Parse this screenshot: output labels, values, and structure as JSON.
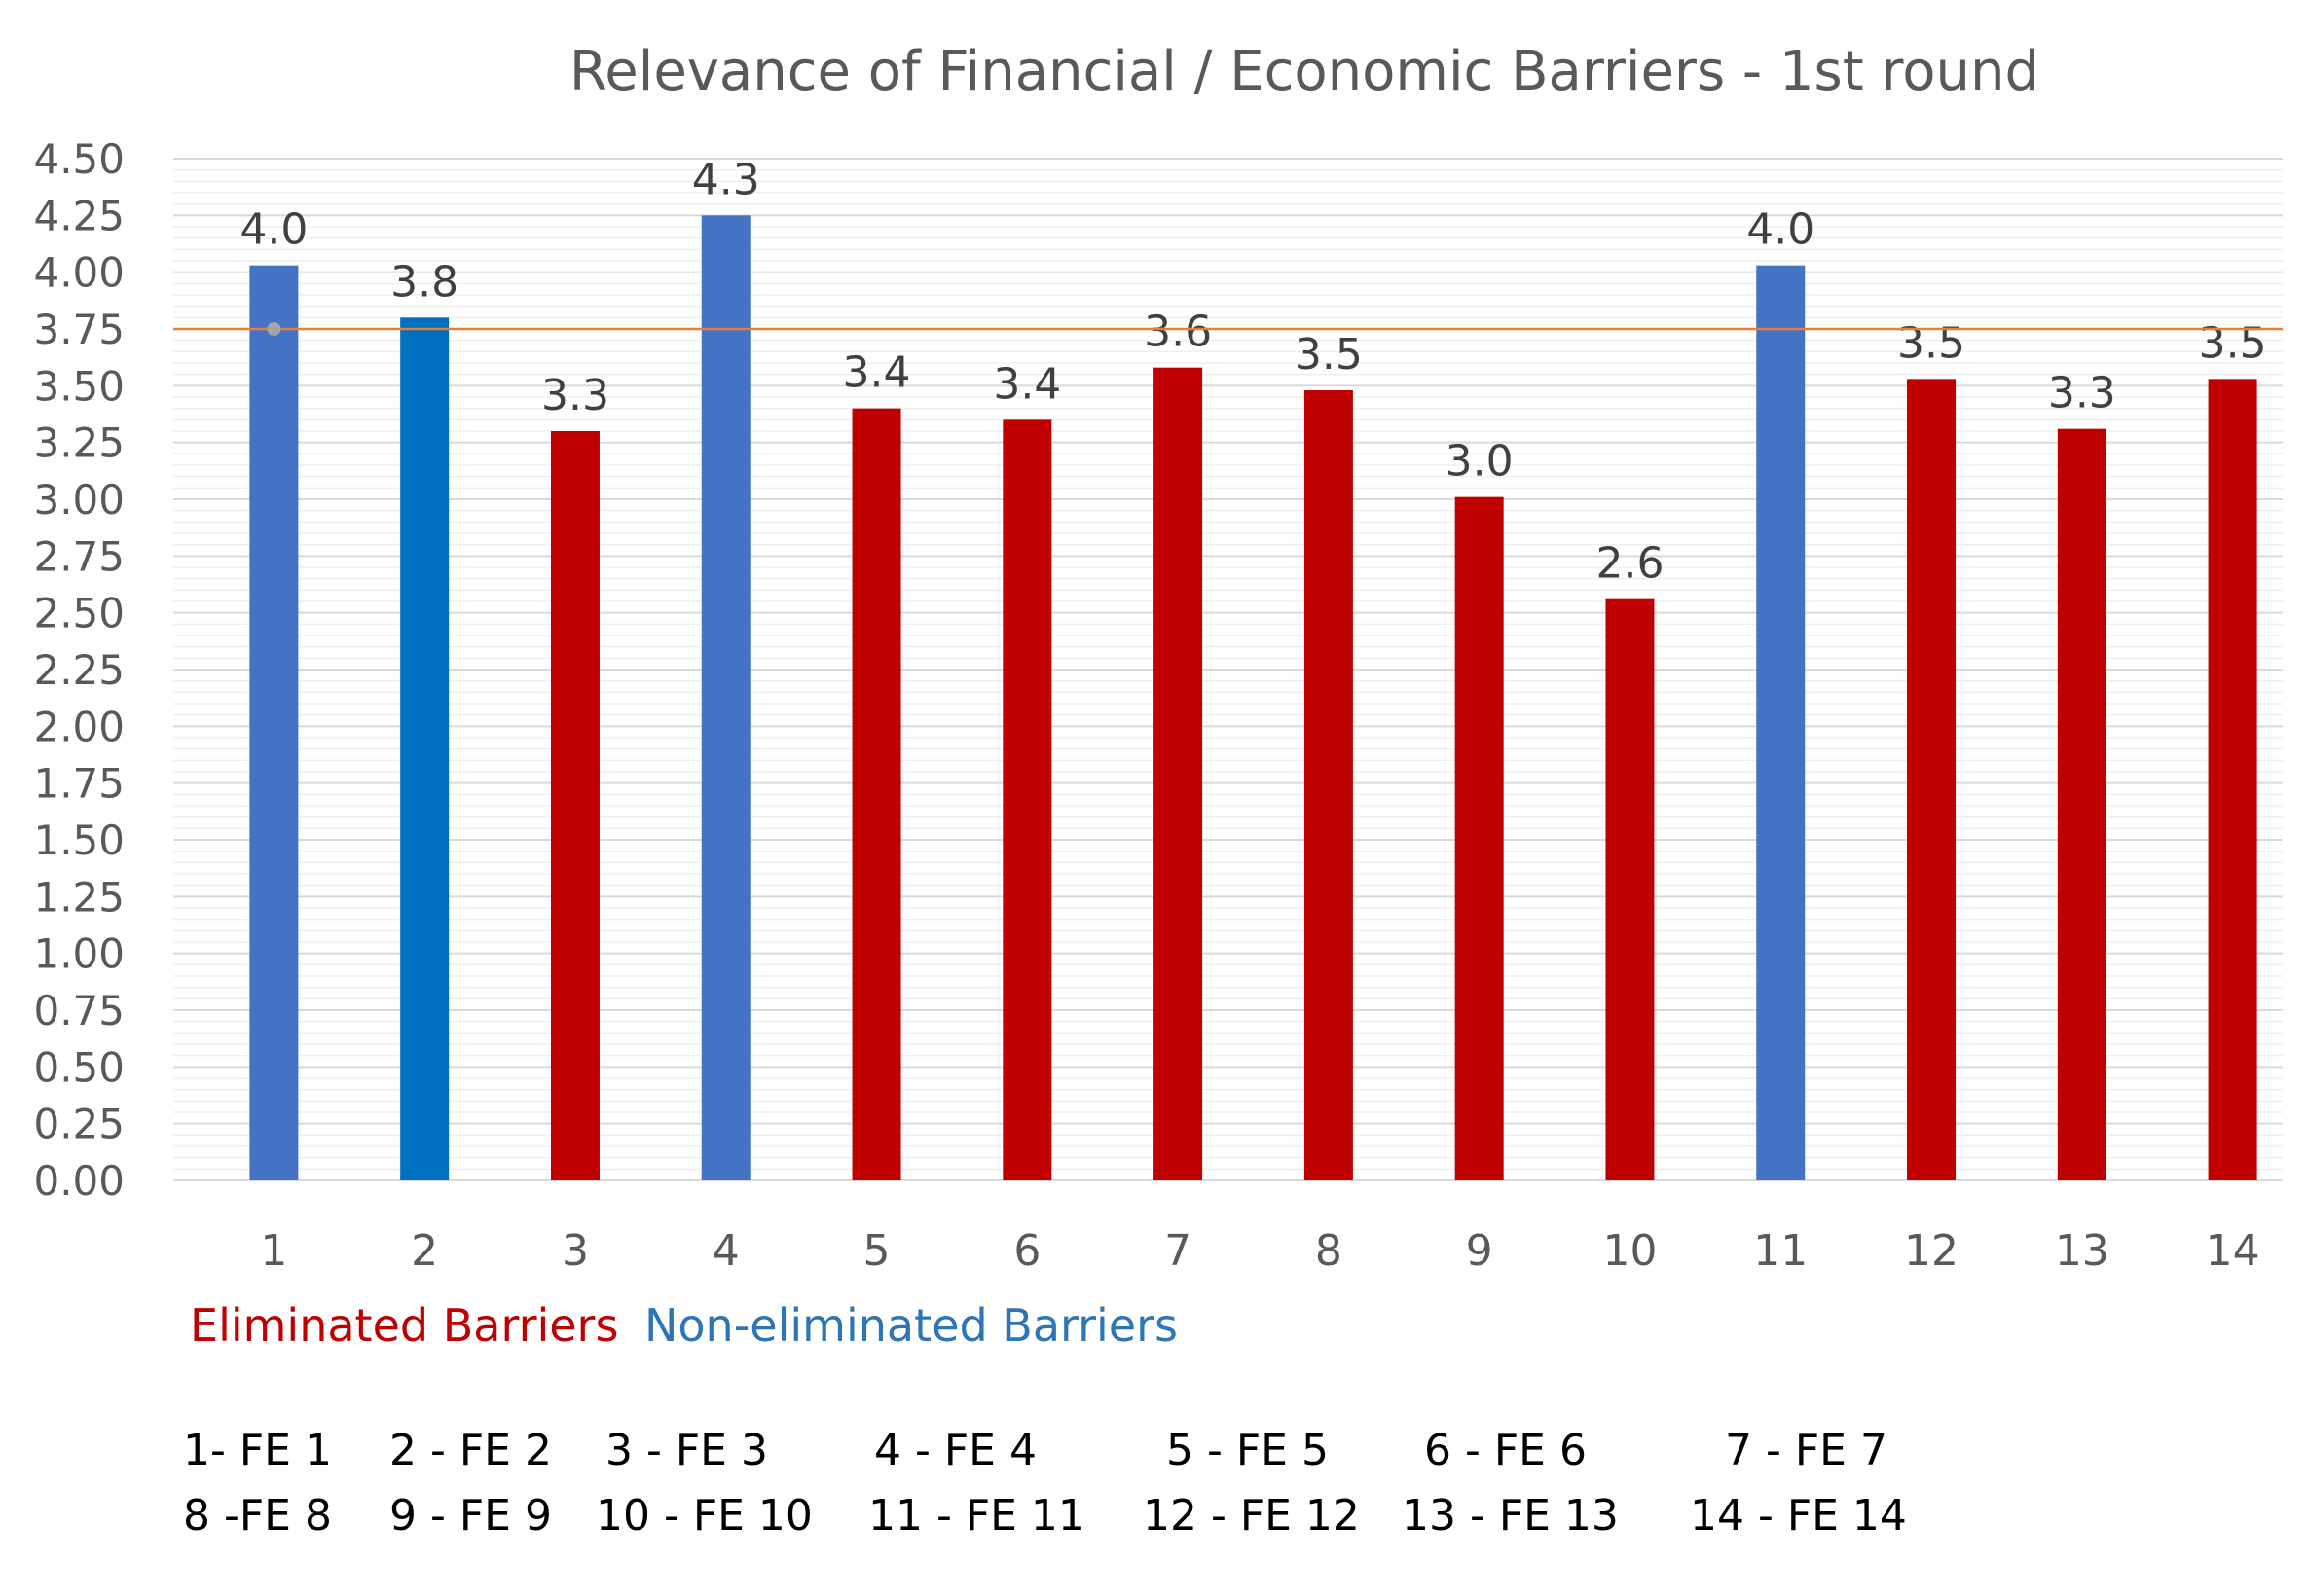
{
  "chart_data": {
    "type": "bar",
    "title": "Relevance of Financial / Economic Barriers - 1st round",
    "categories": [
      "1",
      "2",
      "3",
      "4",
      "5",
      "6",
      "7",
      "8",
      "9",
      "10",
      "11",
      "12",
      "13",
      "14"
    ],
    "values": [
      4.03,
      3.8,
      3.3,
      4.25,
      3.4,
      3.35,
      3.58,
      3.48,
      3.01,
      2.56,
      4.03,
      3.53,
      3.31,
      3.53
    ],
    "data_labels": [
      "4.0",
      "3.8",
      "3.3",
      "4.3",
      "3.4",
      "3.4",
      "3.6",
      "3.5",
      "3.0",
      "2.6",
      "4.0",
      "3.5",
      "3.3",
      "3.5"
    ],
    "status": [
      "non-eliminated",
      "non-eliminated",
      "eliminated",
      "non-eliminated",
      "eliminated",
      "eliminated",
      "eliminated",
      "eliminated",
      "eliminated",
      "eliminated",
      "non-eliminated",
      "eliminated",
      "eliminated",
      "eliminated"
    ],
    "bar_colors": [
      "#4472C4",
      "#0070C0",
      "#C00000",
      "#4472C4",
      "#C00000",
      "#C00000",
      "#C00000",
      "#C00000",
      "#C00000",
      "#C00000",
      "#4472C4",
      "#C00000",
      "#C00000",
      "#C00000"
    ],
    "ylim": [
      0,
      4.5
    ],
    "yticks": [
      "0.00",
      "0.25",
      "0.50",
      "0.75",
      "1.00",
      "1.25",
      "1.50",
      "1.75",
      "2.00",
      "2.25",
      "2.50",
      "2.75",
      "3.00",
      "3.25",
      "3.50",
      "3.75",
      "4.00",
      "4.25",
      "4.50"
    ],
    "threshold": 3.75,
    "threshold_color": "#ED7D31",
    "xlabel": "",
    "ylabel": "",
    "grid": true
  },
  "legend": {
    "eliminated": {
      "label": "Eliminated Barriers",
      "color": "#C00000"
    },
    "non_eliminated": {
      "label": "Non-eliminated Barriers",
      "color": "#2E75B6"
    }
  },
  "mapping": {
    "row1": [
      "1- FE 1",
      "2 - FE 2",
      "3 - FE 3",
      "4 - FE 4",
      "5 - FE 5",
      "6 - FE 6",
      "7 - FE 7"
    ],
    "row2": [
      "8 -FE 8",
      "9 - FE 9",
      "10 - FE 10",
      "11 - FE 11",
      "12 - FE 12",
      "13 - FE 13",
      "14 - FE 14"
    ]
  }
}
